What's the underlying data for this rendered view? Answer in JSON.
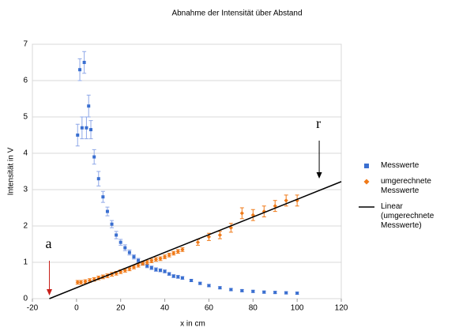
{
  "chart_data": {
    "type": "scatter",
    "title": "Abnahme der Intensität über Abstand",
    "x_label": "x in cm",
    "y_label": "Intensität in V",
    "xlim": [
      -20,
      120
    ],
    "xticks": [
      -20,
      0,
      20,
      40,
      60,
      80,
      100,
      120
    ],
    "ylim": [
      0,
      7
    ],
    "yticks": [
      0,
      1,
      2,
      3,
      4,
      5,
      6,
      7
    ],
    "grid": true,
    "legend": "right",
    "series": [
      {
        "name": "Messwerte",
        "color": "#3a6fd0",
        "marker": "square",
        "x": [
          0.5,
          1.5,
          2.5,
          3.5,
          4.5,
          5.5,
          6.5,
          8,
          10,
          12,
          14,
          16,
          18,
          20,
          22,
          24,
          26,
          28,
          30,
          32,
          34,
          36,
          38,
          40,
          42,
          44,
          46,
          48,
          52,
          56,
          60,
          65,
          70,
          75,
          80,
          85,
          90,
          95,
          100
        ],
        "values": [
          4.5,
          6.3,
          4.7,
          6.5,
          4.7,
          5.3,
          4.65,
          3.9,
          3.3,
          2.8,
          2.4,
          2.05,
          1.75,
          1.55,
          1.4,
          1.27,
          1.15,
          1.05,
          0.97,
          0.9,
          0.85,
          0.8,
          0.78,
          0.75,
          0.68,
          0.62,
          0.6,
          0.57,
          0.5,
          0.42,
          0.36,
          0.3,
          0.25,
          0.22,
          0.2,
          0.18,
          0.17,
          0.16,
          0.15
        ],
        "errors": [
          0.3,
          0.3,
          0.3,
          0.3,
          0.3,
          0.3,
          0.25,
          0.2,
          0.2,
          0.15,
          0.12,
          0.1,
          0.1,
          0.08,
          0.08,
          0.07,
          0.06,
          0.06,
          0.05,
          0.05,
          0.05,
          0.05,
          0.04,
          0.04,
          0.04,
          0.04,
          0.04,
          0.04,
          0.03,
          0.03,
          0.03,
          0.03,
          0.03,
          0.03,
          0.03,
          0.03,
          0.03,
          0.03,
          0.03
        ],
        "error_color": "#8fa8e8"
      },
      {
        "name": "umgerechnete Messwerte",
        "color": "#f07a18",
        "marker": "diamond",
        "x": [
          0.5,
          2,
          4,
          6,
          8,
          10,
          12,
          14,
          16,
          18,
          20,
          22,
          24,
          26,
          28,
          30,
          32,
          34,
          36,
          38,
          40,
          42,
          44,
          46,
          48,
          55,
          60,
          65,
          70,
          75,
          80,
          85,
          90,
          95,
          100
        ],
        "values": [
          0.45,
          0.45,
          0.47,
          0.5,
          0.53,
          0.57,
          0.6,
          0.63,
          0.67,
          0.7,
          0.74,
          0.78,
          0.82,
          0.87,
          0.92,
          0.97,
          1.0,
          1.04,
          1.08,
          1.1,
          1.15,
          1.2,
          1.25,
          1.3,
          1.35,
          1.55,
          1.7,
          1.75,
          1.95,
          2.35,
          2.3,
          2.4,
          2.55,
          2.7,
          2.7
        ],
        "errors": [
          0.05,
          0.05,
          0.05,
          0.05,
          0.05,
          0.05,
          0.05,
          0.05,
          0.05,
          0.05,
          0.05,
          0.05,
          0.05,
          0.05,
          0.05,
          0.05,
          0.05,
          0.05,
          0.05,
          0.05,
          0.05,
          0.05,
          0.05,
          0.05,
          0.05,
          0.08,
          0.1,
          0.1,
          0.12,
          0.15,
          0.15,
          0.15,
          0.15,
          0.15,
          0.15
        ],
        "error_color": "#f07a18"
      },
      {
        "name": "Linear (umgerechnete Messwerte)",
        "color": "#000000",
        "marker": "none",
        "x": [
          -12.3,
          120
        ],
        "values": [
          0,
          3.22
        ]
      }
    ],
    "annotations": [
      {
        "text": "a",
        "color": "#c8201a",
        "x": -12.3
      },
      {
        "text": "r",
        "color": "#000000",
        "x": 110
      }
    ]
  }
}
